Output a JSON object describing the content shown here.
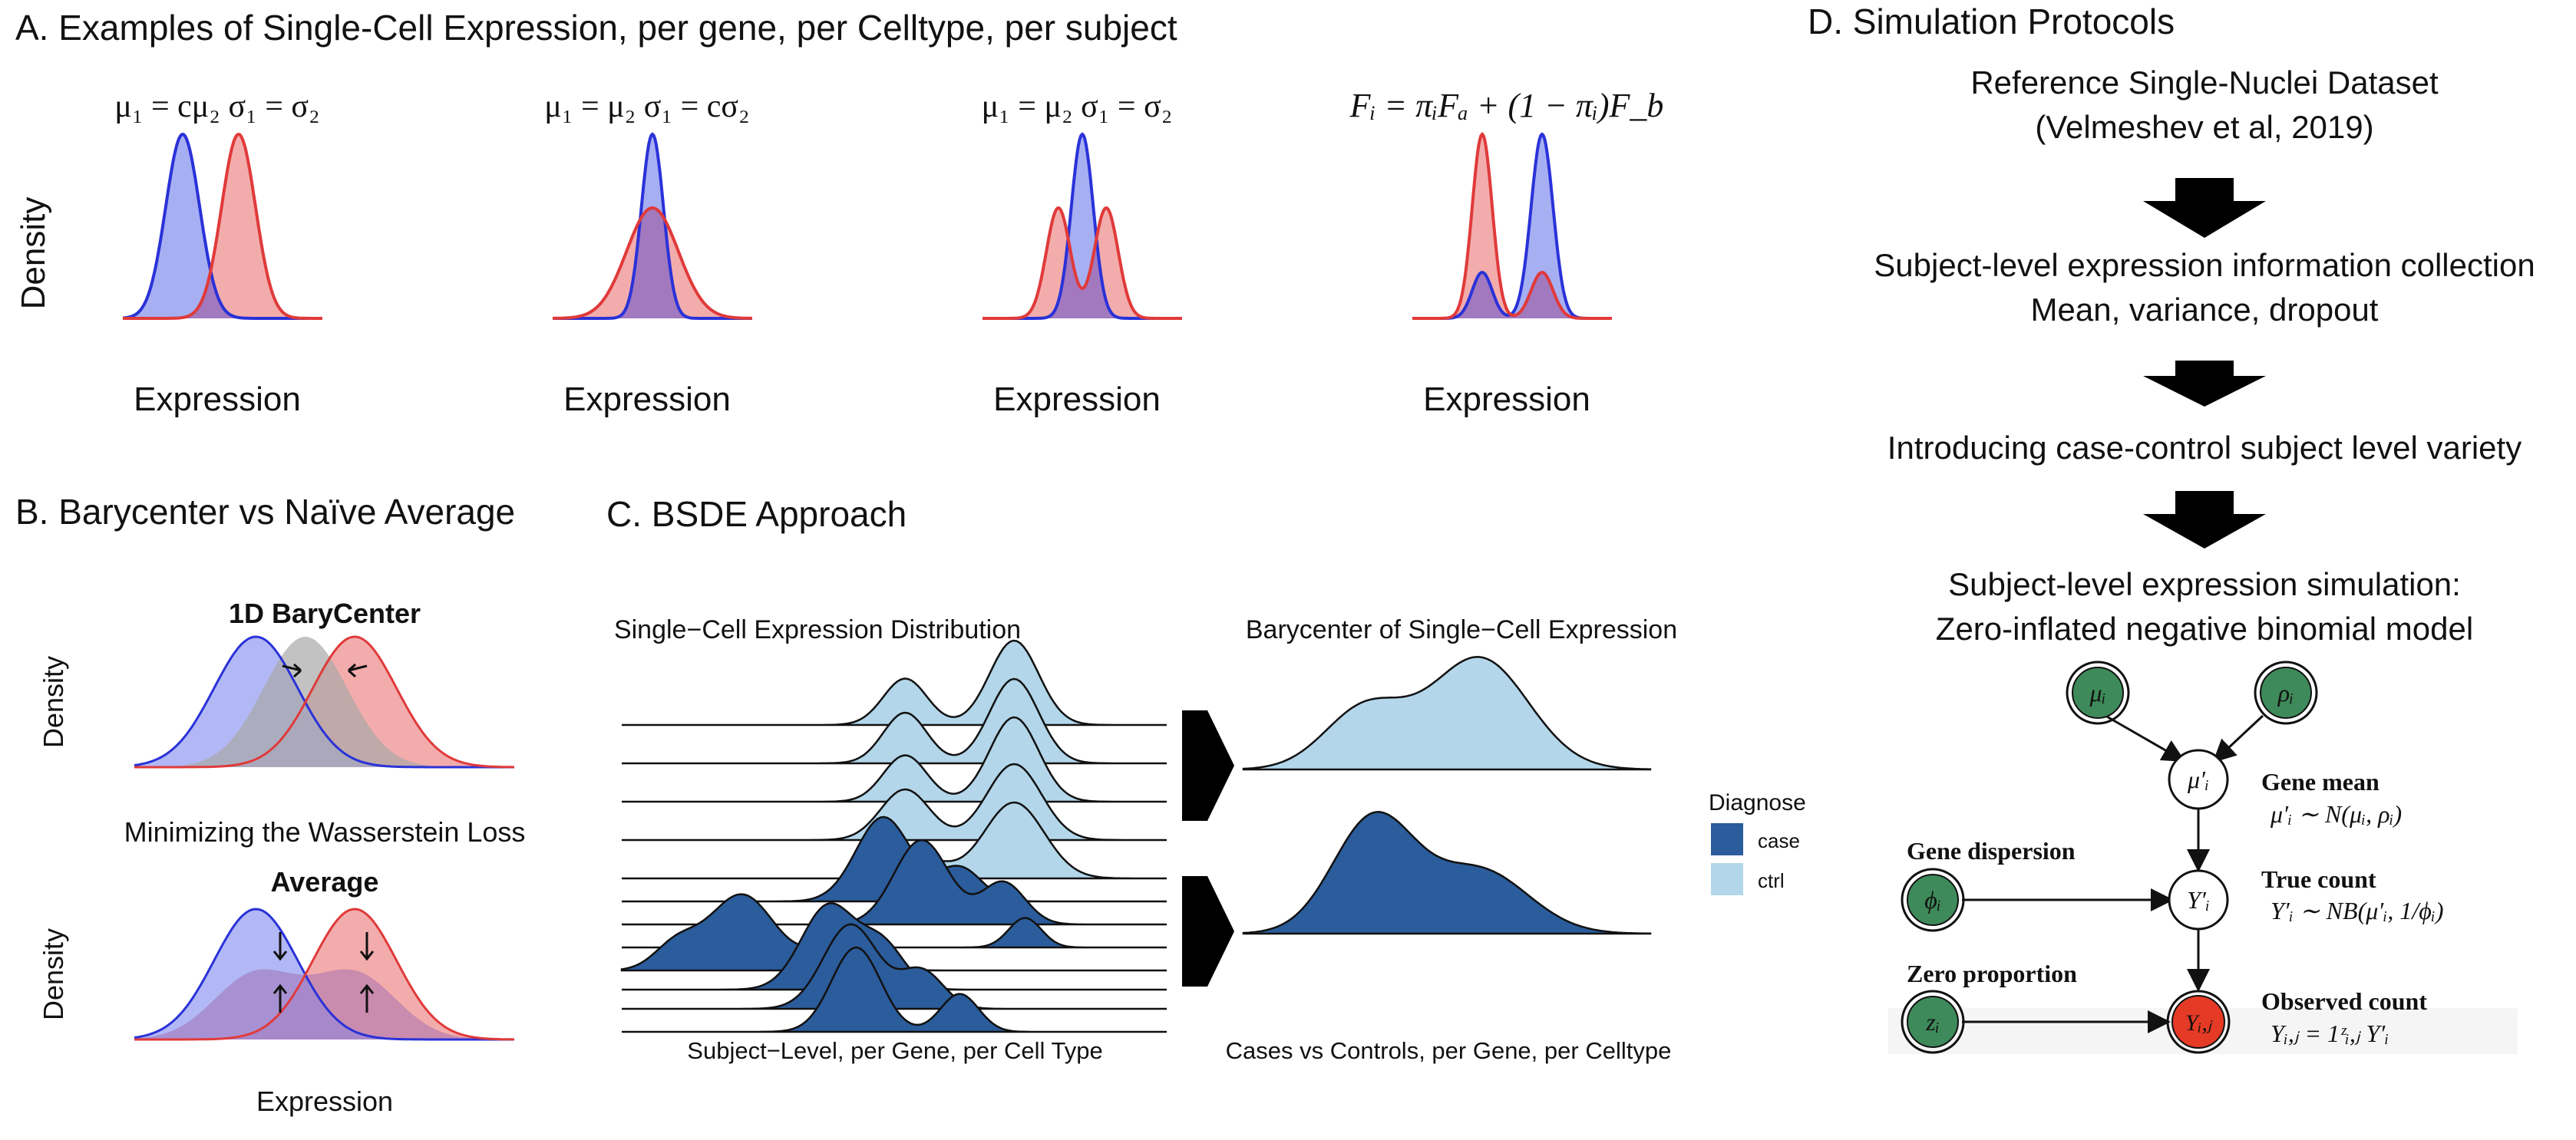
{
  "panel_a": {
    "title": "A. Examples of Single-Cell Expression, per gene, per Celltype, per subject",
    "ylabel": "Density",
    "examples": [
      {
        "formula": "μ₁ = cμ₂  σ₁ = σ₂",
        "xlabel": "Expression"
      },
      {
        "formula": "μ₁ = μ₂  σ₁ = cσ₂",
        "xlabel": "Expression"
      },
      {
        "formula": "μ₁ = μ₂  σ₁ = σ₂",
        "xlabel": "Expression"
      },
      {
        "formula": "Fᵢ = πᵢFₐ + (1 − πᵢ)F_b",
        "xlabel": "Expression"
      }
    ]
  },
  "panel_b": {
    "title": "B. Barycenter vs Naïve Average",
    "barycenter_label": "1D BaryCenter",
    "caption": "Minimizing the Wasserstein Loss",
    "average_label": "Average",
    "ylabel_top": "Density",
    "ylabel_bottom": "Density",
    "xlabel": "Expression"
  },
  "panel_c": {
    "title": "C. BSDE Approach",
    "left_title": "Single−Cell Expression Distribution",
    "right_title": "Barycenter of Single−Cell Expression",
    "left_caption": "Subject−Level, per Gene, per Cell Type",
    "right_caption": "Cases vs Controls, per Gene, per Celltype",
    "legend_title": "Diagnose",
    "legend_items": [
      {
        "label": "case",
        "color": "#2b5c9b"
      },
      {
        "label": "ctrl",
        "color": "#b3d6ea"
      }
    ]
  },
  "panel_d": {
    "title": "D. Simulation Protocols",
    "steps": [
      "Reference Single-Nuclei Dataset",
      "(Velmeshev et al, 2019)",
      "Subject-level expression information collection",
      "Mean, variance, dropout",
      "Introducing case-control subject level variety",
      "Subject-level expression simulation:",
      "Zero-inflated negative binomial model"
    ],
    "nodes": {
      "mu": "μᵢ",
      "rho": "ρᵢ",
      "mu_prime": "μ′ᵢ",
      "phi": "ϕᵢ",
      "y_prime": "Y′ᵢ",
      "z": "zᵢ",
      "y": "Yᵢ,ⱼ"
    },
    "labels": {
      "gene_mean": "Gene mean",
      "gene_mean_eq": "μ′ᵢ ∼ N(μᵢ, ρᵢ)",
      "gene_dispersion": "Gene dispersion",
      "true_count": "True count",
      "true_count_eq": "Y′ᵢ ∼ NB(μ′ᵢ, 1/ϕᵢ)",
      "zero_proportion": "Zero proportion",
      "observed_count": "Observed count",
      "observed_count_eq": "Yᵢ,ⱼ = 1ᶻᵢ,ⱼ Y′ᵢ"
    }
  },
  "colors": {
    "blue_line": "#2a32d8",
    "blue_fill": "#9da6f2",
    "red_line": "#e03a3a",
    "red_fill": "#f2a3a3",
    "overlap": "#a06ab0",
    "grey_fill": "#a8a8a8",
    "case": "#2b5c9b",
    "ctrl": "#b3d6ea",
    "node_green": "#3e8a5a",
    "node_red": "#e53a26"
  }
}
